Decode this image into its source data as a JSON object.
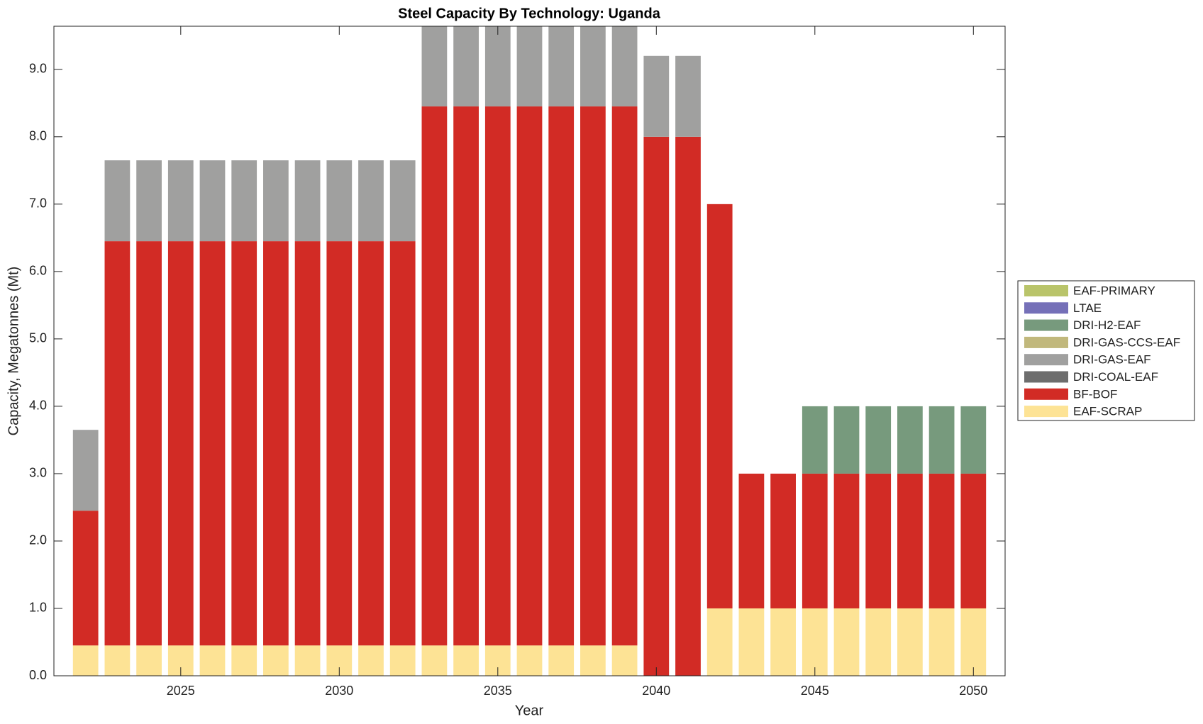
{
  "chart_data": {
    "type": "stacked_bar",
    "title": "Steel Capacity By Technology: Uganda",
    "xlabel": "Year",
    "ylabel": "Capacity, Megatonnes (Mt)",
    "x": [
      2022,
      2023,
      2024,
      2025,
      2026,
      2027,
      2028,
      2029,
      2030,
      2031,
      2032,
      2033,
      2034,
      2035,
      2036,
      2037,
      2038,
      2039,
      2040,
      2041,
      2042,
      2043,
      2044,
      2045,
      2046,
      2047,
      2048,
      2049,
      2050
    ],
    "series": [
      {
        "name": "EAF-SCRAP",
        "color": "#fde395",
        "values": [
          0.45,
          0.45,
          0.45,
          0.45,
          0.45,
          0.45,
          0.45,
          0.45,
          0.45,
          0.45,
          0.45,
          0.45,
          0.45,
          0.45,
          0.45,
          0.45,
          0.45,
          0.45,
          0,
          0,
          1,
          1,
          1,
          1,
          1,
          1,
          1,
          1,
          1
        ]
      },
      {
        "name": "BF-BOF",
        "color": "#d22b25",
        "values": [
          2,
          6,
          6,
          6,
          6,
          6,
          6,
          6,
          6,
          6,
          6,
          8,
          8,
          8,
          8,
          8,
          8,
          8,
          8,
          8,
          6,
          2,
          2,
          2,
          2,
          2,
          2,
          2,
          2
        ]
      },
      {
        "name": "DRI-COAL-EAF",
        "color": "#6d6d6d",
        "values": [
          0,
          0,
          0,
          0,
          0,
          0,
          0,
          0,
          0,
          0,
          0,
          0,
          0,
          0,
          0,
          0,
          0,
          0,
          0,
          0,
          0,
          0,
          0,
          0,
          0,
          0,
          0,
          0,
          0
        ]
      },
      {
        "name": "DRI-GAS-EAF",
        "color": "#a0a09f",
        "values": [
          1.2,
          1.2,
          1.2,
          1.2,
          1.2,
          1.2,
          1.2,
          1.2,
          1.2,
          1.2,
          1.2,
          1.2,
          1.2,
          1.2,
          1.2,
          1.2,
          1.2,
          1.2,
          1.2,
          1.2,
          0,
          0,
          0,
          0,
          0,
          0,
          0,
          0,
          0
        ]
      },
      {
        "name": "DRI-GAS-CCS-EAF",
        "color": "#c1b87c",
        "values": [
          0,
          0,
          0,
          0,
          0,
          0,
          0,
          0,
          0,
          0,
          0,
          0,
          0,
          0,
          0,
          0,
          0,
          0,
          0,
          0,
          0,
          0,
          0,
          0,
          0,
          0,
          0,
          0,
          0
        ]
      },
      {
        "name": "DRI-H2-EAF",
        "color": "#779a7d",
        "values": [
          0,
          0,
          0,
          0,
          0,
          0,
          0,
          0,
          0,
          0,
          0,
          0,
          0,
          0,
          0,
          0,
          0,
          0,
          0,
          0,
          0,
          0,
          0,
          1,
          1,
          1,
          1,
          1,
          1
        ]
      },
      {
        "name": "LTAE",
        "color": "#7570b8",
        "values": [
          0,
          0,
          0,
          0,
          0,
          0,
          0,
          0,
          0,
          0,
          0,
          0,
          0,
          0,
          0,
          0,
          0,
          0,
          0,
          0,
          0,
          0,
          0,
          0,
          0,
          0,
          0,
          0,
          0
        ]
      },
      {
        "name": "EAF-PRIMARY",
        "color": "#b9c46a",
        "values": [
          0,
          0,
          0,
          0,
          0,
          0,
          0,
          0,
          0,
          0,
          0,
          0,
          0,
          0,
          0,
          0,
          0,
          0,
          0,
          0,
          0,
          0,
          0,
          0,
          0,
          0,
          0,
          0,
          0
        ]
      }
    ],
    "xlim": [
      2021,
      2051
    ],
    "xticks": [
      2025,
      2030,
      2035,
      2040,
      2045,
      2050
    ],
    "ylim": [
      0,
      9.64
    ],
    "yticks": [
      {
        "value": 0,
        "label": "0.0"
      },
      {
        "value": 1,
        "label": "1.0"
      },
      {
        "value": 2,
        "label": "2.0"
      },
      {
        "value": 3,
        "label": "3.0"
      },
      {
        "value": 4,
        "label": "4.0"
      },
      {
        "value": 5,
        "label": "5.0"
      },
      {
        "value": 6,
        "label": "6.0"
      },
      {
        "value": 7,
        "label": "7.0"
      },
      {
        "value": 8,
        "label": "8.0"
      },
      {
        "value": 9,
        "label": "9.0"
      }
    ],
    "legend": "outside-right",
    "grid": false
  }
}
